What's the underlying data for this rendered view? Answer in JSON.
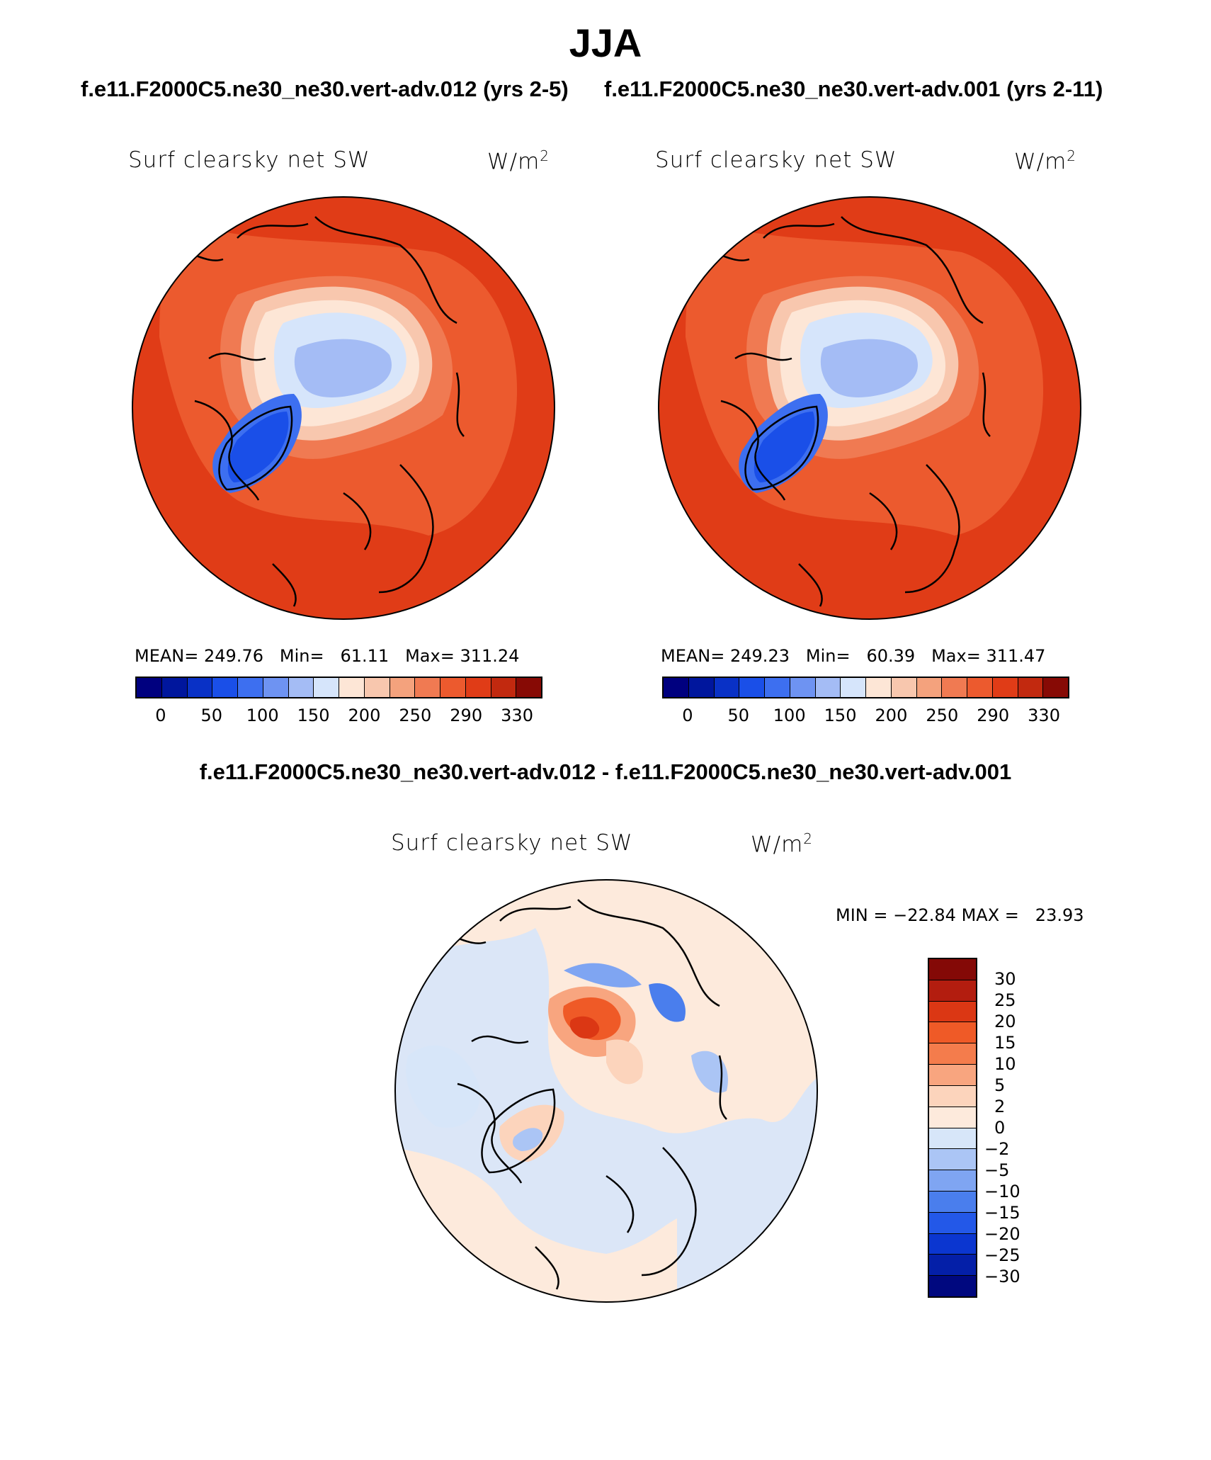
{
  "title": "JJA",
  "panels": [
    {
      "case": "f.e11.F2000C5.ne30_ne30.vert-adv.012 (yrs 2-5)",
      "variable": "Surf clearsky net SW",
      "units": "W/m",
      "units_sup": "2",
      "mean_label": "MEAN=",
      "mean": "249.76",
      "min_label": "Min=",
      "min": "61.11",
      "max_label": "Max=",
      "max": "311.24"
    },
    {
      "case": "f.e11.F2000C5.ne30_ne30.vert-adv.001 (yrs 2-11)",
      "variable": "Surf clearsky net SW",
      "units": "W/m",
      "units_sup": "2",
      "mean_label": "MEAN=",
      "mean": "249.23",
      "min_label": "Min=",
      "min": "60.39",
      "max_label": "Max=",
      "max": "311.47"
    }
  ],
  "abs_colorbar": {
    "colors": [
      "#00007f",
      "#00169d",
      "#0931c6",
      "#1a4fe8",
      "#3d6ff0",
      "#6e93f2",
      "#a4bcf5",
      "#d6e5fb",
      "#fde6d6",
      "#f8c7ae",
      "#f4a27d",
      "#f07a52",
      "#ec5a2e",
      "#e03c17",
      "#c2290f",
      "#870a05"
    ],
    "tick_labels": [
      "0",
      "50",
      "100",
      "150",
      "200",
      "250",
      "290",
      "330"
    ]
  },
  "difference": {
    "header": "f.e11.F2000C5.ne30_ne30.vert-adv.012 - f.e11.F2000C5.ne30_ne30.vert-adv.001",
    "variable": "Surf clearsky net SW",
    "units": "W/m",
    "units_sup": "2",
    "min_label": "MIN =",
    "min": "−22.84",
    "max_label": "MAX =",
    "max": "23.93",
    "colorbar": {
      "colors": [
        "#840906",
        "#b31d0f",
        "#db3714",
        "#ef5a27",
        "#f47c4c",
        "#f8a57f",
        "#fcd4bc",
        "#fdeadc",
        "#d7e6f9",
        "#abc5f5",
        "#7fa5f2",
        "#4a7eed",
        "#2358e8",
        "#0b36d0",
        "#041fa8",
        "#00087f"
      ],
      "tick_labels": [
        "30",
        "25",
        "20",
        "15",
        "10",
        "5",
        "2",
        "0",
        "−2",
        "−5",
        "−10",
        "−15",
        "−20",
        "−25",
        "−30"
      ]
    }
  },
  "chart_data": [
    {
      "type": "heatmap",
      "projection": "north polar stereographic",
      "title": "f.e11.F2000C5.ne30_ne30.vert-adv.012 (yrs 2-5)",
      "variable": "Surf clearsky net SW",
      "units": "W/m2",
      "contour_levels": [
        0,
        50,
        100,
        150,
        200,
        250,
        290,
        330
      ],
      "mean": 249.76,
      "min": 61.11,
      "max": 311.24
    },
    {
      "type": "heatmap",
      "projection": "north polar stereographic",
      "title": "f.e11.F2000C5.ne30_ne30.vert-adv.001 (yrs 2-11)",
      "variable": "Surf clearsky net SW",
      "units": "W/m2",
      "contour_levels": [
        0,
        50,
        100,
        150,
        200,
        250,
        290,
        330
      ],
      "mean": 249.23,
      "min": 60.39,
      "max": 311.47
    },
    {
      "type": "heatmap",
      "projection": "north polar stereographic",
      "title": "f.e11.F2000C5.ne30_ne30.vert-adv.012 - f.e11.F2000C5.ne30_ne30.vert-adv.001",
      "variable": "Surf clearsky net SW",
      "units": "W/m2",
      "contour_levels": [
        -30,
        -25,
        -20,
        -15,
        -10,
        -5,
        -2,
        0,
        2,
        5,
        10,
        15,
        20,
        25,
        30
      ],
      "min": -22.84,
      "max": 23.93
    }
  ]
}
